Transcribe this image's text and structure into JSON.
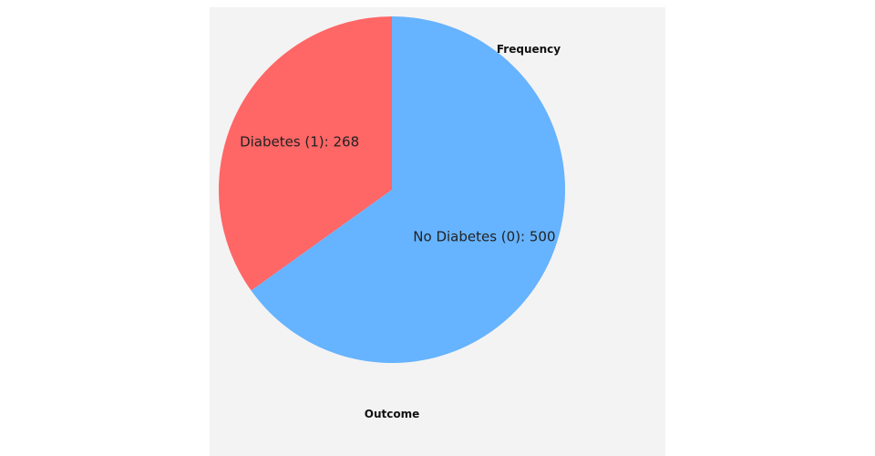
{
  "chart_data": {
    "type": "pie",
    "categories": [
      "Diabetes (1)",
      "No Diabetes (0)"
    ],
    "values": [
      268,
      500
    ],
    "slice_labels": [
      "Diabetes (1): 268",
      "No Diabetes (0): 500"
    ],
    "colors": [
      "#ff6666",
      "#66b3ff"
    ],
    "ylabel": "Frequency",
    "xlabel": "Outcome",
    "background": "#f3f3f3"
  }
}
